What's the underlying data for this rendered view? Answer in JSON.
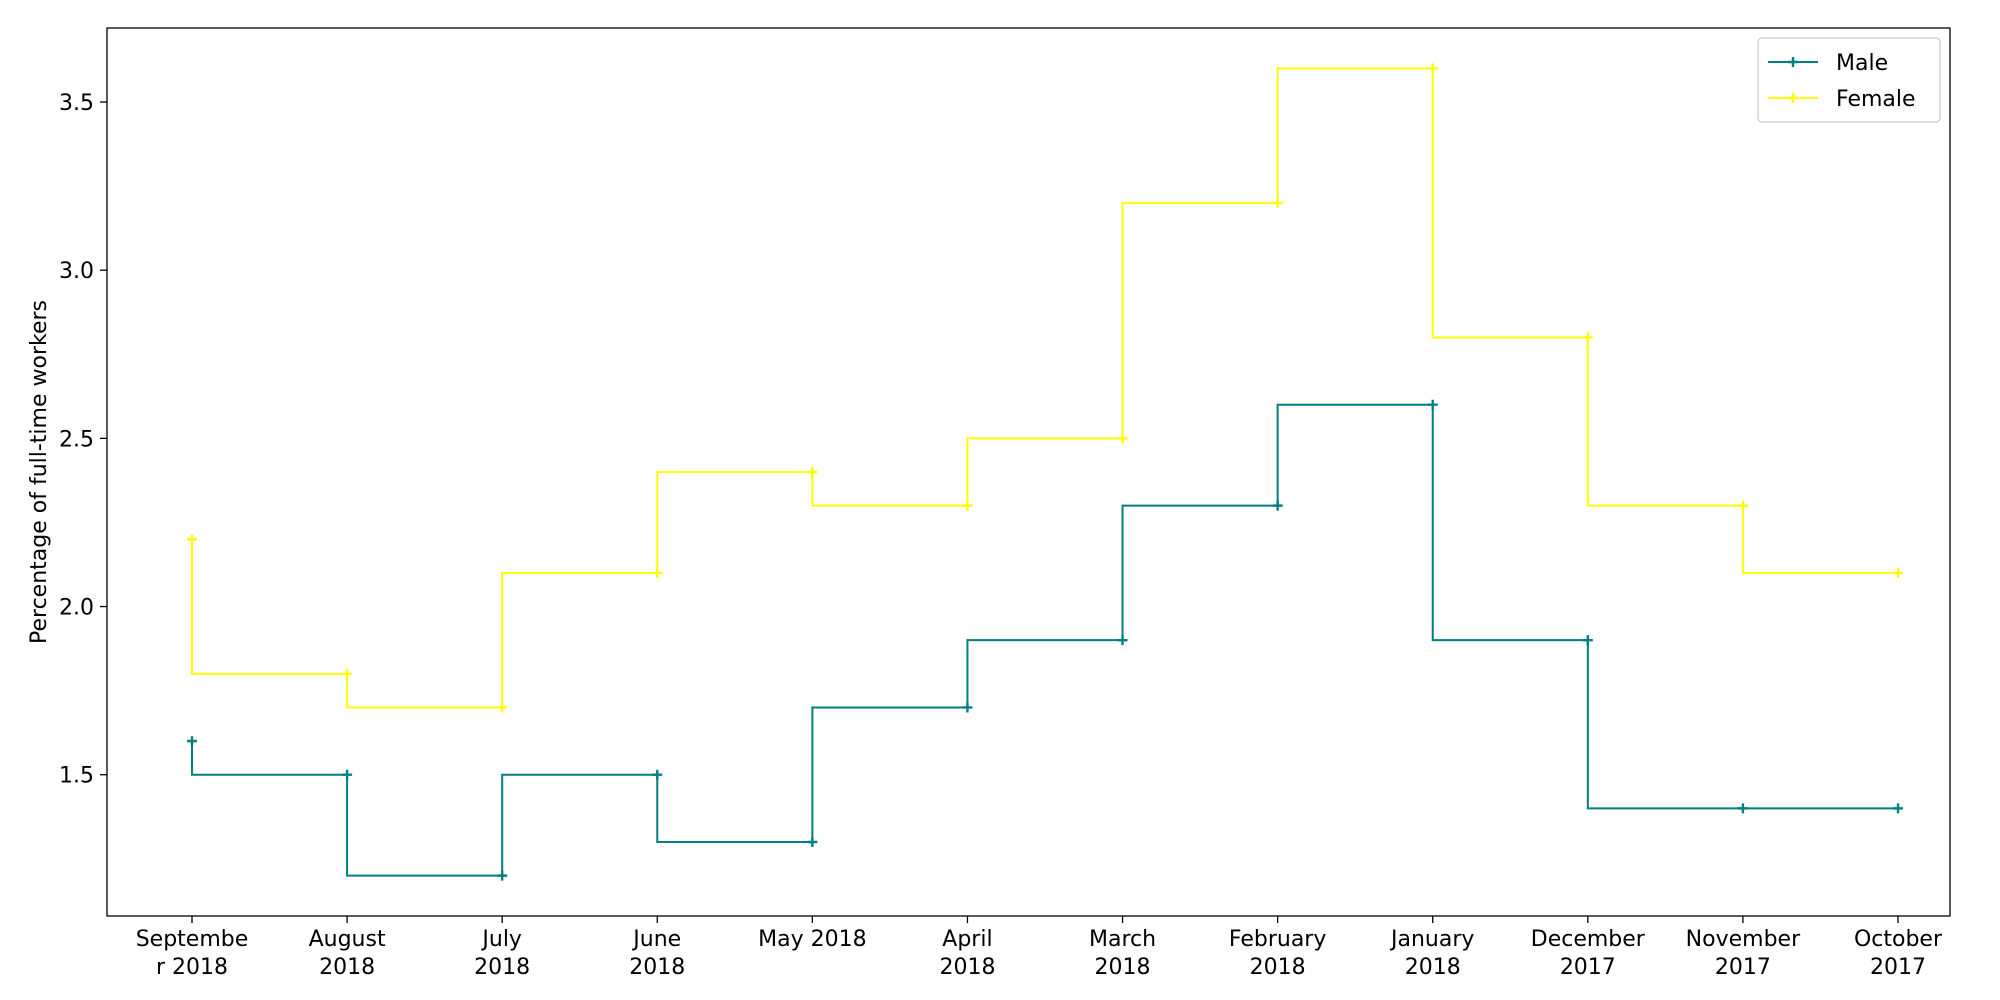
{
  "chart_data": {
    "type": "line",
    "step": "pre",
    "title": "",
    "xlabel": "",
    "ylabel": "Percentage of full-time workers",
    "categories": [
      "Septembe\nr 2018",
      "August\n2018",
      "July\n2018",
      "June\n2018",
      "May 2018",
      "April\n2018",
      "March\n2018",
      "February\n2018",
      "January\n2018",
      "December\n2017",
      "November\n2017",
      "October\n2017"
    ],
    "series": [
      {
        "name": "Male",
        "color": "#008080",
        "marker": "+",
        "values": [
          1.6,
          1.5,
          1.2,
          1.5,
          1.3,
          1.7,
          1.9,
          2.3,
          2.6,
          1.9,
          1.4,
          1.4
        ]
      },
      {
        "name": "Female",
        "color": "#ffff00",
        "marker": "+",
        "values": [
          2.2,
          1.8,
          1.7,
          2.1,
          2.4,
          2.3,
          2.5,
          3.2,
          3.6,
          2.8,
          2.3,
          2.1
        ]
      }
    ],
    "yticks": [
      1.5,
      2.0,
      2.5,
      3.0,
      3.5
    ],
    "ytick_labels": [
      "1.5",
      "2.0",
      "2.5",
      "3.0",
      "3.5"
    ],
    "ylim": [
      1.08,
      3.72
    ],
    "grid": false,
    "legend_position": "top-right"
  }
}
